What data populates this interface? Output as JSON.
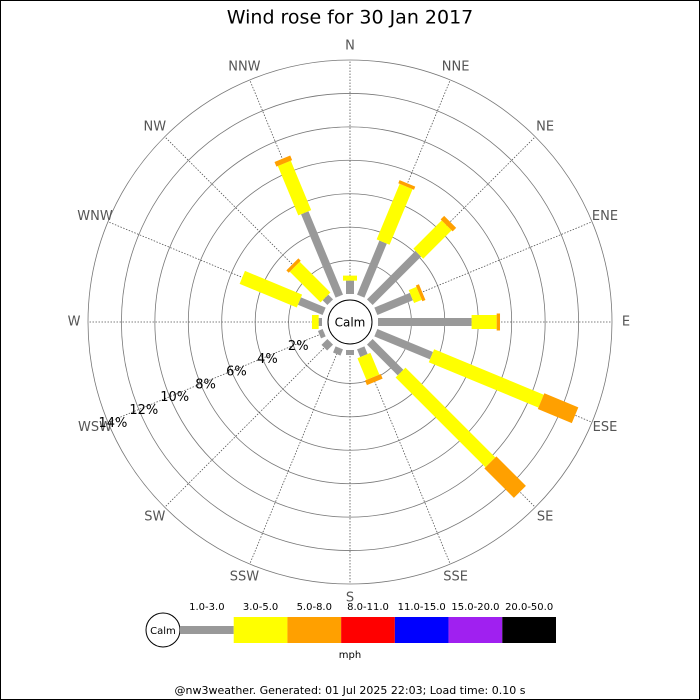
{
  "chart_data": {
    "type": "windrose",
    "title": "Wind rose for 30 Jan 2017",
    "directions": [
      "N",
      "NNE",
      "NE",
      "ENE",
      "E",
      "ESE",
      "SE",
      "SSE",
      "S",
      "SSW",
      "SW",
      "WSW",
      "W",
      "WNW",
      "NW",
      "NNW"
    ],
    "calm_label": "Calm",
    "unit": "mph",
    "rlim": [
      0,
      14
    ],
    "rticks": [
      {
        "value": 2,
        "label": "2%"
      },
      {
        "value": 4,
        "label": "4%"
      },
      {
        "value": 6,
        "label": "6%"
      },
      {
        "value": 8,
        "label": "8%"
      },
      {
        "value": 10,
        "label": "10%"
      },
      {
        "value": 12,
        "label": "12%"
      },
      {
        "value": 14,
        "label": "14%"
      }
    ],
    "series": [
      {
        "name": "1.0-3.0",
        "color": "#999999",
        "values": [
          0.8,
          3.5,
          4.1,
          2.3,
          5.6,
          3.6,
          2.6,
          0.5,
          0.3,
          0.4,
          0.5,
          0.3,
          0.2,
          1.6,
          0.4,
          5.4
        ]
      },
      {
        "name": "3.0-5.0",
        "color": "#ffff00",
        "values": [
          0.3,
          3.6,
          2.4,
          0.5,
          1.5,
          7.1,
          7.6,
          1.4,
          0,
          0,
          0,
          0,
          0.4,
          3.7,
          2.6,
          3.2
        ]
      },
      {
        "name": "5.0-8.0",
        "color": "#ffa000",
        "values": [
          0,
          0.2,
          0.3,
          0.2,
          0.2,
          2.2,
          2.5,
          0.3,
          0,
          0,
          0,
          0,
          0,
          0,
          0.2,
          0.3
        ]
      },
      {
        "name": "8.0-11.0",
        "color": "#ff0000",
        "values": [
          0,
          0,
          0,
          0,
          0,
          0,
          0,
          0,
          0,
          0,
          0,
          0,
          0,
          0,
          0,
          0
        ]
      },
      {
        "name": "11.0-15.0",
        "color": "#0000ff",
        "values": [
          0,
          0,
          0,
          0,
          0,
          0,
          0,
          0,
          0,
          0,
          0,
          0,
          0,
          0,
          0,
          0
        ]
      },
      {
        "name": "15.0-20.0",
        "color": "#a020f0",
        "values": [
          0,
          0,
          0,
          0,
          0,
          0,
          0,
          0,
          0,
          0,
          0,
          0,
          0,
          0,
          0,
          0
        ]
      },
      {
        "name": "20.0-50.0",
        "color": "#000000",
        "values": [
          0,
          0,
          0,
          0,
          0,
          0,
          0,
          0,
          0,
          0,
          0,
          0,
          0,
          0,
          0,
          0
        ]
      }
    ],
    "footer": "@nw3weather. Generated: 01 Jul 2025 22:03; Load time: 0.10 s"
  }
}
